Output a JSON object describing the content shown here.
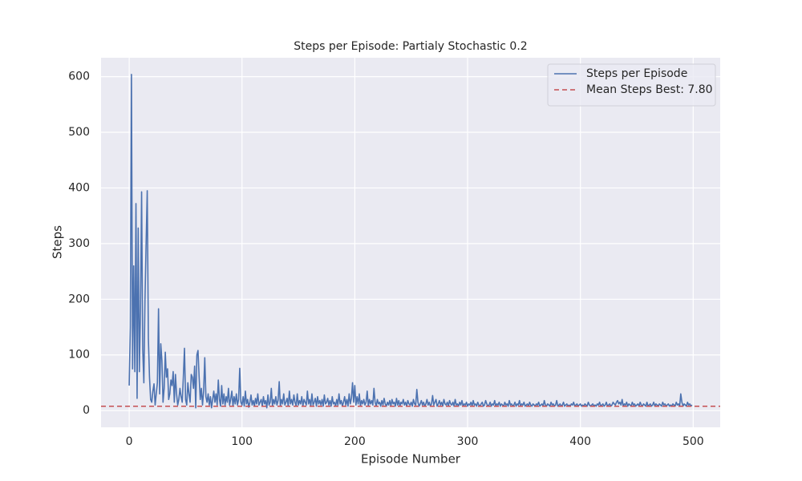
{
  "chart_data": {
    "type": "line",
    "title": "Steps per Episode: Partialy Stochastic 0.2",
    "xlabel": "Episode Number",
    "ylabel": "Steps",
    "x": [
      0,
      1,
      2,
      3,
      4,
      5,
      6,
      7,
      8,
      9,
      10,
      11,
      12,
      13,
      14,
      15,
      16,
      17,
      18,
      19,
      20,
      21,
      22,
      23,
      24,
      25,
      26,
      27,
      28,
      29,
      30,
      31,
      32,
      33,
      34,
      35,
      36,
      37,
      38,
      39,
      40,
      41,
      42,
      43,
      44,
      45,
      46,
      47,
      48,
      49,
      50,
      51,
      52,
      53,
      54,
      55,
      56,
      57,
      58,
      59,
      60,
      61,
      62,
      63,
      64,
      65,
      66,
      67,
      68,
      69,
      70,
      71,
      72,
      73,
      74,
      75,
      76,
      77,
      78,
      79,
      80,
      81,
      82,
      83,
      84,
      85,
      86,
      87,
      88,
      89,
      90,
      91,
      92,
      93,
      94,
      95,
      96,
      97,
      98,
      99,
      100,
      101,
      102,
      103,
      104,
      105,
      106,
      107,
      108,
      109,
      110,
      111,
      112,
      113,
      114,
      115,
      116,
      117,
      118,
      119,
      120,
      121,
      122,
      123,
      124,
      125,
      126,
      127,
      128,
      129,
      130,
      131,
      132,
      133,
      134,
      135,
      136,
      137,
      138,
      139,
      140,
      141,
      142,
      143,
      144,
      145,
      146,
      147,
      148,
      149,
      150,
      151,
      152,
      153,
      154,
      155,
      156,
      157,
      158,
      159,
      160,
      161,
      162,
      163,
      164,
      165,
      166,
      167,
      168,
      169,
      170,
      171,
      172,
      173,
      174,
      175,
      176,
      177,
      178,
      179,
      180,
      181,
      182,
      183,
      184,
      185,
      186,
      187,
      188,
      189,
      190,
      191,
      192,
      193,
      194,
      195,
      196,
      197,
      198,
      199,
      200,
      201,
      202,
      203,
      204,
      205,
      206,
      207,
      208,
      209,
      210,
      211,
      212,
      213,
      214,
      215,
      216,
      217,
      218,
      219,
      220,
      221,
      222,
      223,
      224,
      225,
      226,
      227,
      228,
      229,
      230,
      231,
      232,
      233,
      234,
      235,
      236,
      237,
      238,
      239,
      240,
      241,
      242,
      243,
      244,
      245,
      246,
      247,
      248,
      249,
      250,
      251,
      252,
      253,
      254,
      255,
      256,
      257,
      258,
      259,
      260,
      261,
      262,
      263,
      264,
      265,
      266,
      267,
      268,
      269,
      270,
      271,
      272,
      273,
      274,
      275,
      276,
      277,
      278,
      279,
      280,
      281,
      282,
      283,
      284,
      285,
      286,
      287,
      288,
      289,
      290,
      291,
      292,
      293,
      294,
      295,
      296,
      297,
      298,
      299,
      300,
      301,
      302,
      303,
      304,
      305,
      306,
      307,
      308,
      309,
      310,
      311,
      312,
      313,
      314,
      315,
      316,
      317,
      318,
      319,
      320,
      321,
      322,
      323,
      324,
      325,
      326,
      327,
      328,
      329,
      330,
      331,
      332,
      333,
      334,
      335,
      336,
      337,
      338,
      339,
      340,
      341,
      342,
      343,
      344,
      345,
      346,
      347,
      348,
      349,
      350,
      351,
      352,
      353,
      354,
      355,
      356,
      357,
      358,
      359,
      360,
      361,
      362,
      363,
      364,
      365,
      366,
      367,
      368,
      369,
      370,
      371,
      372,
      373,
      374,
      375,
      376,
      377,
      378,
      379,
      380,
      381,
      382,
      383,
      384,
      385,
      386,
      387,
      388,
      389,
      390,
      391,
      392,
      393,
      394,
      395,
      396,
      397,
      398,
      399,
      400,
      401,
      402,
      403,
      404,
      405,
      406,
      407,
      408,
      409,
      410,
      411,
      412,
      413,
      414,
      415,
      416,
      417,
      418,
      419,
      420,
      421,
      422,
      423,
      424,
      425,
      426,
      427,
      428,
      429,
      430,
      431,
      432,
      433,
      434,
      435,
      436,
      437,
      438,
      439,
      440,
      441,
      442,
      443,
      444,
      445,
      446,
      447,
      448,
      449,
      450,
      451,
      452,
      453,
      454,
      455,
      456,
      457,
      458,
      459,
      460,
      461,
      462,
      463,
      464,
      465,
      466,
      467,
      468,
      469,
      470,
      471,
      472,
      473,
      474,
      475,
      476,
      477,
      478,
      479,
      480,
      481,
      482,
      483,
      484,
      485,
      486,
      487,
      488,
      489,
      490,
      491,
      492,
      493,
      494,
      495,
      496,
      497,
      498,
      499
    ],
    "series": [
      {
        "name": "Steps per Episode",
        "color": "#4c72b0",
        "values": [
          45,
          150,
          604,
          75,
          260,
          70,
          372,
          22,
          328,
          70,
          180,
          393,
          110,
          50,
          200,
          300,
          395,
          130,
          60,
          20,
          15,
          35,
          48,
          10,
          30,
          50,
          183,
          30,
          120,
          90,
          15,
          40,
          105,
          60,
          75,
          20,
          30,
          55,
          45,
          70,
          15,
          65,
          30,
          10,
          20,
          40,
          25,
          15,
          60,
          112,
          20,
          10,
          50,
          30,
          15,
          65,
          60,
          40,
          80,
          5,
          100,
          108,
          60,
          20,
          40,
          10,
          35,
          95,
          25,
          15,
          30,
          10,
          25,
          5,
          20,
          35,
          15,
          30,
          10,
          55,
          20,
          8,
          45,
          12,
          30,
          10,
          25,
          15,
          40,
          10,
          20,
          35,
          8,
          25,
          12,
          30,
          10,
          20,
          76,
          15,
          10,
          25,
          8,
          35,
          12,
          20,
          6,
          15,
          28,
          10,
          18,
          8,
          22,
          12,
          30,
          10,
          15,
          20,
          8,
          25,
          12,
          18,
          5,
          28,
          10,
          15,
          40,
          8,
          20,
          12,
          25,
          10,
          18,
          52,
          8,
          20,
          12,
          30,
          10,
          15,
          22,
          8,
          35,
          12,
          20,
          10,
          28,
          15,
          8,
          30,
          10,
          18,
          12,
          25,
          8,
          20,
          15,
          10,
          35,
          12,
          20,
          8,
          30,
          10,
          15,
          22,
          8,
          25,
          12,
          18,
          10,
          20,
          8,
          28,
          12,
          15,
          22,
          10,
          18,
          8,
          25,
          12,
          15,
          8,
          20,
          10,
          30,
          12,
          18,
          8,
          15,
          25,
          10,
          20,
          8,
          30,
          12,
          22,
          50,
          15,
          45,
          10,
          25,
          12,
          30,
          8,
          18,
          12,
          20,
          10,
          15,
          35,
          8,
          20,
          12,
          18,
          10,
          40,
          15,
          8,
          20,
          12,
          15,
          8,
          18,
          10,
          22,
          12,
          8,
          15,
          10,
          18,
          8,
          20,
          12,
          15,
          8,
          22,
          10,
          18,
          8,
          15,
          12,
          20,
          10,
          15,
          8,
          18,
          12,
          10,
          15,
          8,
          20,
          12,
          10,
          38,
          15,
          8,
          12,
          18,
          10,
          15,
          8,
          12,
          20,
          10,
          15,
          8,
          12,
          27,
          10,
          15,
          20,
          8,
          12,
          18,
          10,
          15,
          8,
          20,
          12,
          10,
          15,
          8,
          18,
          12,
          10,
          15,
          8,
          20,
          10,
          12,
          8,
          15,
          10,
          18,
          8,
          12,
          10,
          15,
          8,
          12,
          10,
          15,
          8,
          18,
          10,
          12,
          8,
          15,
          10,
          8,
          12,
          15,
          8,
          10,
          18,
          12,
          8,
          10,
          15,
          8,
          12,
          10,
          18,
          8,
          12,
          10,
          15,
          8,
          12,
          10,
          8,
          15,
          10,
          12,
          8,
          18,
          10,
          12,
          8,
          10,
          15,
          8,
          12,
          10,
          18,
          8,
          12,
          10,
          15,
          8,
          10,
          12,
          8,
          15,
          10,
          8,
          12,
          10,
          8,
          12,
          10,
          15,
          8,
          10,
          12,
          8,
          18,
          10,
          8,
          12,
          10,
          8,
          15,
          10,
          12,
          8,
          10,
          18,
          8,
          10,
          12,
          8,
          10,
          15,
          8,
          10,
          12,
          8,
          10,
          8,
          12,
          10,
          15,
          8,
          10,
          12,
          8,
          10,
          12,
          8,
          10,
          8,
          12,
          10,
          8,
          15,
          10,
          8,
          10,
          12,
          8,
          10,
          8,
          12,
          10,
          15,
          8,
          10,
          12,
          8,
          10,
          15,
          8,
          10,
          12,
          8,
          10,
          15,
          12,
          10,
          15,
          18,
          12,
          15,
          10,
          20,
          8,
          12,
          10,
          15,
          8,
          12,
          10,
          8,
          15,
          10,
          12,
          8,
          10,
          12,
          8,
          15,
          10,
          8,
          12,
          10,
          8,
          15,
          8,
          10,
          12,
          8,
          10,
          15,
          8,
          12,
          10,
          8,
          12,
          10,
          8,
          15,
          10,
          12,
          8,
          10,
          12,
          8,
          10,
          8,
          12,
          10,
          8,
          15,
          10,
          12,
          8,
          30,
          15,
          8,
          12,
          10,
          8,
          15,
          10,
          12,
          8,
          10
        ]
      }
    ],
    "hlines": [
      {
        "name": "Mean Steps Best: 7.80",
        "value": 7.8,
        "color": "#c44e52",
        "style": "dashed"
      }
    ],
    "xlim": [
      -24.95,
      523.95
    ],
    "xticks": [
      0,
      100,
      200,
      300,
      400,
      500
    ],
    "ylim": [
      -30,
      634
    ],
    "yticks": [
      0,
      100,
      200,
      300,
      400,
      500,
      600
    ],
    "grid": true,
    "legend": "upper right"
  }
}
